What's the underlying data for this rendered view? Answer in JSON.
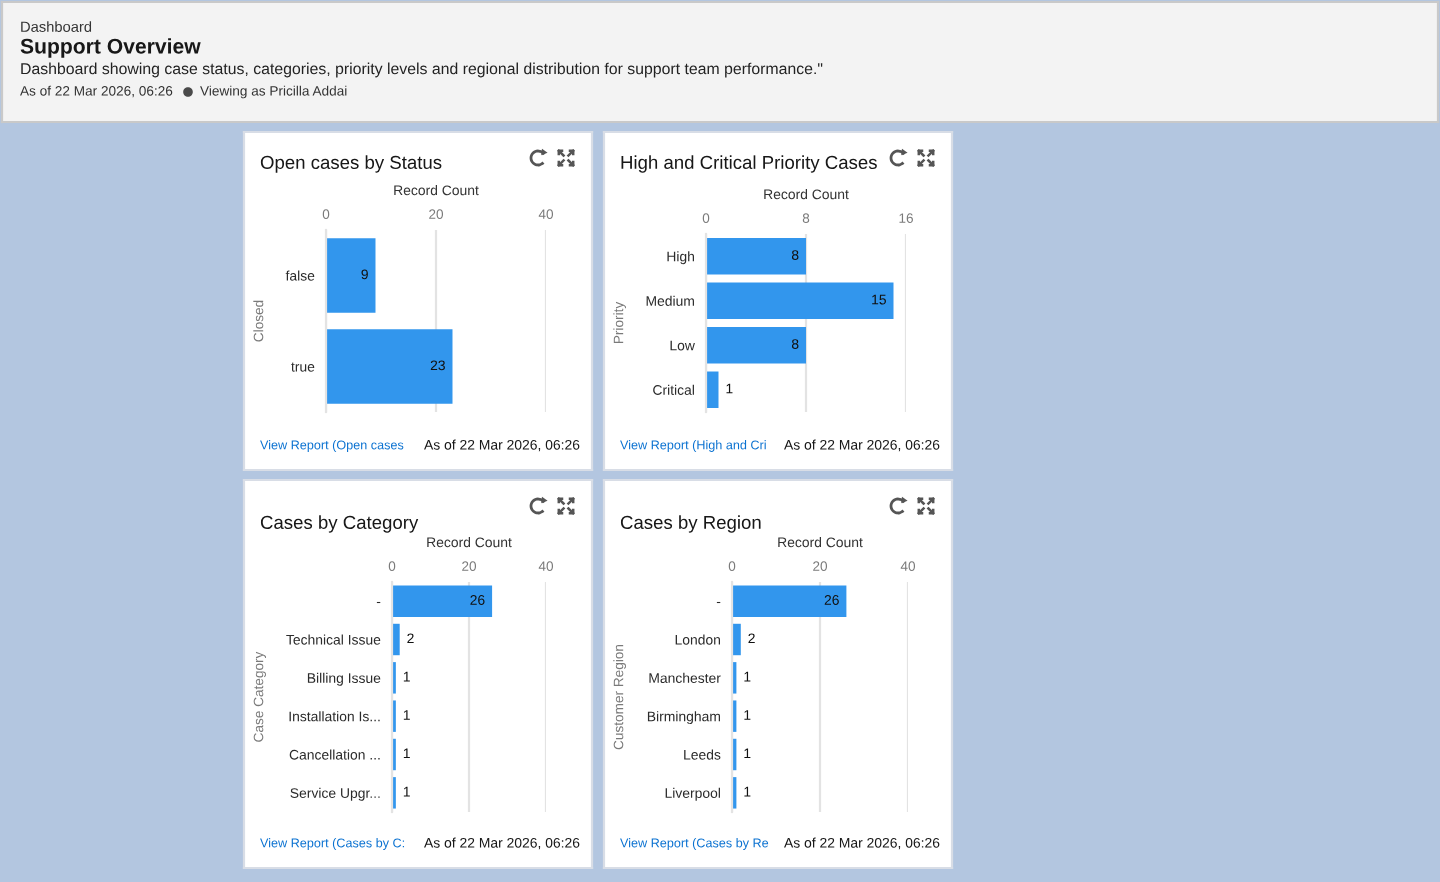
{
  "chart_data": [
    {
      "type": "other",
      "title": "Support Overview",
      "subtitle": "Dashboard showing case status, categories, priority levels and regional distribution for support team performance.\"",
      "annotations": [
        "Dashboard",
        "As of 22 Mar 2026, 06:26",
        "Viewing as Pricilla Addai"
      ]
    },
    {
      "type": "bar",
      "orientation": "horizontal",
      "title": "Open cases by Status",
      "xlabel": "Record Count",
      "ylabel": "Closed",
      "categories": [
        "false",
        "true"
      ],
      "values": [
        9,
        23
      ],
      "color": "#3296ed",
      "xlim": [
        0,
        40
      ],
      "xticks": [
        0,
        20,
        40
      ],
      "grid": "x",
      "data_labels": true,
      "annotations": [
        "View Report (Open cases",
        "As of 22 Mar 2026, 06:26"
      ]
    },
    {
      "type": "bar",
      "orientation": "horizontal",
      "title": "High and Critical Priority Cases",
      "xlabel": "Record Count",
      "ylabel": "Priority",
      "categories": [
        "High",
        "Medium",
        "Low",
        "Critical"
      ],
      "values": [
        8,
        15,
        8,
        1
      ],
      "color": "#3296ed",
      "xlim": [
        0,
        16
      ],
      "xticks": [
        0,
        8,
        16
      ],
      "grid": "x",
      "data_labels": true,
      "annotations": [
        "View Report (High and Cri",
        "As of 22 Mar 2026, 06:26"
      ]
    },
    {
      "type": "bar",
      "orientation": "horizontal",
      "title": "Cases by Category",
      "xlabel": "Record Count",
      "ylabel": "Case Category",
      "categories": [
        "-",
        "Technical Issue",
        "Billing Issue",
        "Installation Is...",
        "Cancellation ...",
        "Service Upgr..."
      ],
      "values": [
        26,
        2,
        1,
        1,
        1,
        1
      ],
      "color": "#3296ed",
      "xlim": [
        0,
        40
      ],
      "xticks": [
        0,
        20,
        40
      ],
      "grid": "x",
      "data_labels": true,
      "annotations": [
        "View Report (Cases by C:",
        "As of 22 Mar 2026, 06:26"
      ]
    },
    {
      "type": "bar",
      "orientation": "horizontal",
      "title": "Cases by Region",
      "xlabel": "Record Count",
      "ylabel": "Customer Region",
      "categories": [
        "-",
        "London",
        "Manchester",
        "Birmingham",
        "Leeds",
        "Liverpool"
      ],
      "values": [
        26,
        2,
        1,
        1,
        1,
        1
      ],
      "color": "#3296ed",
      "xlim": [
        0,
        40
      ],
      "xticks": [
        0,
        20,
        40
      ],
      "grid": "x",
      "data_labels": true,
      "annotations": [
        "View Report (Cases by Re",
        "As of 22 Mar 2026, 06:26"
      ]
    }
  ]
}
